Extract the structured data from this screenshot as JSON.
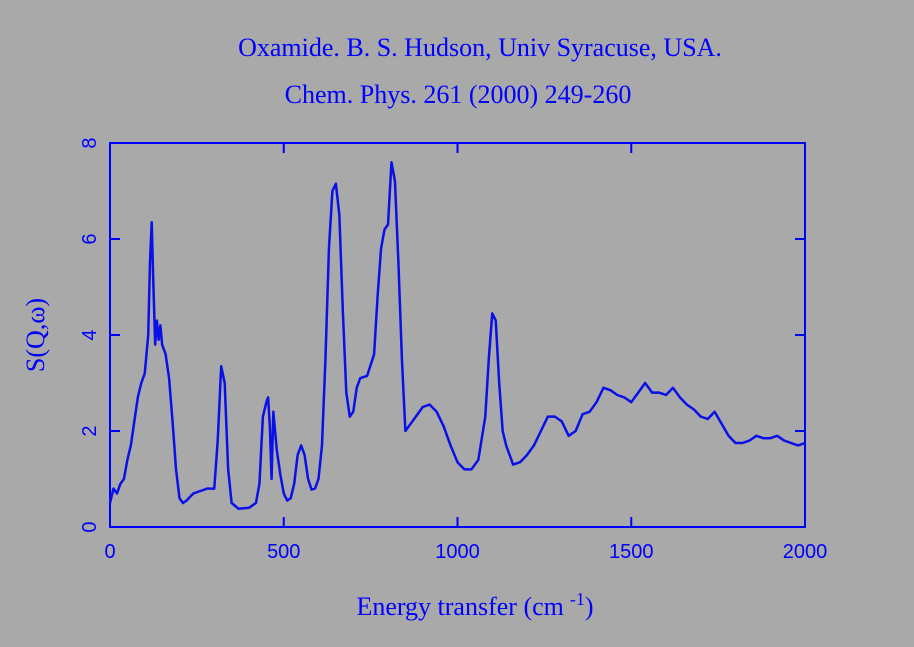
{
  "chart_data": {
    "type": "line",
    "title": "Oxamide. B. S. Hudson, Univ Syracuse, USA.",
    "subtitle": "Chem. Phys. 261 (2000) 249-260",
    "xlabel": [
      "Energy transfer (cm",
      "-1",
      ")"
    ],
    "ylabel": "S(Q,ω)",
    "xlim": [
      0,
      2000
    ],
    "ylim": [
      0,
      8
    ],
    "xticks": [
      0,
      500,
      1000,
      1500,
      2000
    ],
    "yticks": [
      0,
      2,
      4,
      6,
      8
    ],
    "color": "#0a10e8",
    "x": [
      0,
      10,
      20,
      30,
      40,
      50,
      60,
      70,
      80,
      90,
      100,
      110,
      115,
      120,
      125,
      130,
      135,
      140,
      145,
      150,
      160,
      170,
      180,
      190,
      200,
      210,
      220,
      240,
      260,
      280,
      300,
      310,
      320,
      330,
      340,
      350,
      370,
      400,
      420,
      430,
      440,
      450,
      455,
      460,
      465,
      470,
      475,
      480,
      490,
      500,
      510,
      520,
      530,
      540,
      550,
      560,
      570,
      580,
      590,
      600,
      610,
      620,
      630,
      640,
      650,
      660,
      670,
      680,
      690,
      700,
      710,
      720,
      740,
      760,
      770,
      780,
      790,
      800,
      810,
      820,
      830,
      840,
      850,
      860,
      880,
      900,
      920,
      940,
      960,
      980,
      1000,
      1020,
      1040,
      1060,
      1080,
      1090,
      1100,
      1110,
      1120,
      1130,
      1140,
      1160,
      1180,
      1200,
      1220,
      1240,
      1260,
      1280,
      1300,
      1320,
      1340,
      1360,
      1380,
      1400,
      1420,
      1440,
      1460,
      1480,
      1500,
      1520,
      1540,
      1560,
      1580,
      1600,
      1620,
      1640,
      1660,
      1680,
      1700,
      1720,
      1740,
      1760,
      1780,
      1800,
      1820,
      1840,
      1860,
      1880,
      1900,
      1920,
      1940,
      1960,
      1980,
      2000
    ],
    "values": [
      0.5,
      0.8,
      0.7,
      0.9,
      1.0,
      1.4,
      1.7,
      2.2,
      2.7,
      3.0,
      3.2,
      4.0,
      5.5,
      6.35,
      5.0,
      3.8,
      4.3,
      3.9,
      4.2,
      3.8,
      3.6,
      3.1,
      2.2,
      1.2,
      0.6,
      0.5,
      0.55,
      0.7,
      0.75,
      0.8,
      0.8,
      1.8,
      3.35,
      3.0,
      1.2,
      0.5,
      0.38,
      0.4,
      0.5,
      0.9,
      2.3,
      2.6,
      2.7,
      2.1,
      1.0,
      2.4,
      2.0,
      1.6,
      1.1,
      0.7,
      0.55,
      0.6,
      0.9,
      1.5,
      1.7,
      1.5,
      1.0,
      0.78,
      0.8,
      1.0,
      1.7,
      3.5,
      5.8,
      7.0,
      7.15,
      6.5,
      4.5,
      2.8,
      2.3,
      2.4,
      2.9,
      3.1,
      3.15,
      3.6,
      4.8,
      5.8,
      6.2,
      6.3,
      7.6,
      7.2,
      5.5,
      3.5,
      2.0,
      2.1,
      2.3,
      2.5,
      2.55,
      2.4,
      2.1,
      1.7,
      1.35,
      1.2,
      1.2,
      1.4,
      2.3,
      3.5,
      4.45,
      4.3,
      3.0,
      2.0,
      1.7,
      1.3,
      1.35,
      1.5,
      1.7,
      2.0,
      2.3,
      2.3,
      2.2,
      1.9,
      2.0,
      2.35,
      2.4,
      2.6,
      2.9,
      2.85,
      2.75,
      2.7,
      2.6,
      2.8,
      3.0,
      2.8,
      2.8,
      2.75,
      2.9,
      2.7,
      2.55,
      2.45,
      2.3,
      2.25,
      2.4,
      2.15,
      1.9,
      1.75,
      1.75,
      1.8,
      1.9,
      1.85,
      1.85,
      1.9,
      1.8,
      1.75,
      1.7,
      1.75
    ]
  }
}
